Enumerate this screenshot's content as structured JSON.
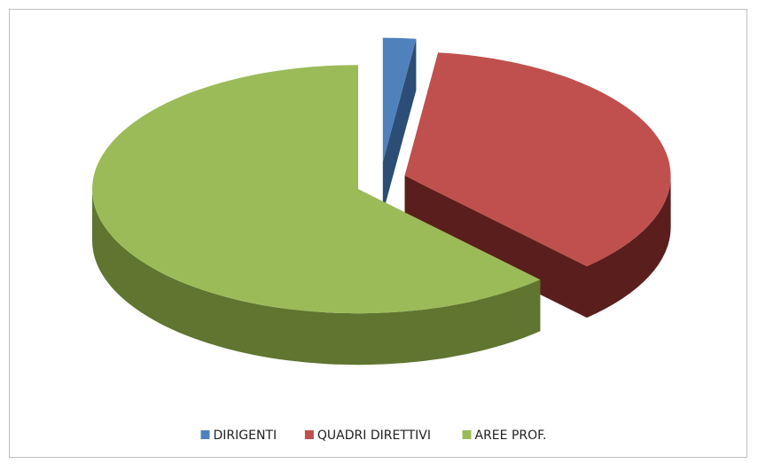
{
  "chart_data": {
    "type": "pie",
    "categories": [
      "DIRIGENTI",
      "QUADRI DIRETTIVI",
      "AREE PROF."
    ],
    "values": [
      2,
      36,
      62
    ],
    "colors": [
      "#4f81bd",
      "#c0504d",
      "#9bbb59"
    ],
    "side_colors": [
      "#2c4d75",
      "#5a1e1d",
      "#5f7530"
    ],
    "legend": "bottom"
  }
}
